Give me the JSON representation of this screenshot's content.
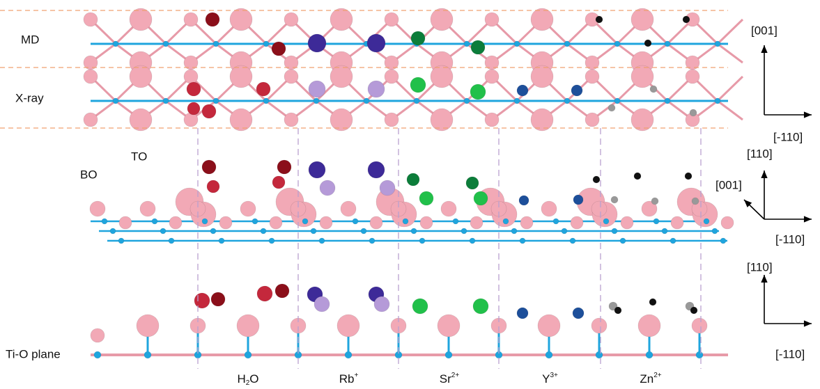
{
  "panel_labels": {
    "md": "MD",
    "xray": "X-ray",
    "bo": "BO",
    "to": "TO",
    "tio": "Ti-O plane"
  },
  "columns": [
    {
      "symbol": "H",
      "sub": "2",
      "tail": "O"
    },
    {
      "symbol": "Rb",
      "charge": "+"
    },
    {
      "symbol": "Sr",
      "charge": "2+"
    },
    {
      "symbol": "Y",
      "charge": "3+"
    },
    {
      "symbol": "Zn",
      "charge": "2+"
    }
  ],
  "axes": [
    {
      "up": "[001]",
      "right": "[-110]"
    },
    {
      "up": "[110]",
      "diag": "[001]",
      "right": "[-110]"
    },
    {
      "up": "[110]",
      "right": "[-110]"
    }
  ]
}
